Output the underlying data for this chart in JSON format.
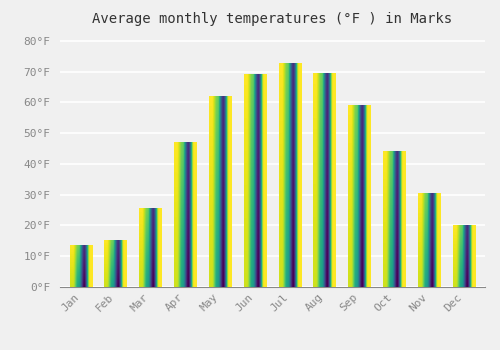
{
  "title": "Average monthly temperatures (°F ) in Marks",
  "months": [
    "Jan",
    "Feb",
    "Mar",
    "Apr",
    "May",
    "Jun",
    "Jul",
    "Aug",
    "Sep",
    "Oct",
    "Nov",
    "Dec"
  ],
  "values": [
    13.5,
    15.0,
    25.5,
    47.0,
    62.0,
    69.0,
    72.5,
    69.5,
    59.0,
    44.0,
    30.5,
    20.0
  ],
  "bar_color": "#FFBB33",
  "bar_edge_color": "#E8960A",
  "background_color": "#f0f0f0",
  "grid_color": "#ffffff",
  "ytick_labels": [
    "0°F",
    "10°F",
    "20°F",
    "30°F",
    "40°F",
    "50°F",
    "60°F",
    "70°F",
    "80°F"
  ],
  "ytick_values": [
    0,
    10,
    20,
    30,
    40,
    50,
    60,
    70,
    80
  ],
  "ylim": [
    0,
    83
  ],
  "title_fontsize": 10,
  "tick_fontsize": 8,
  "tick_color": "#888888",
  "font_family": "monospace"
}
